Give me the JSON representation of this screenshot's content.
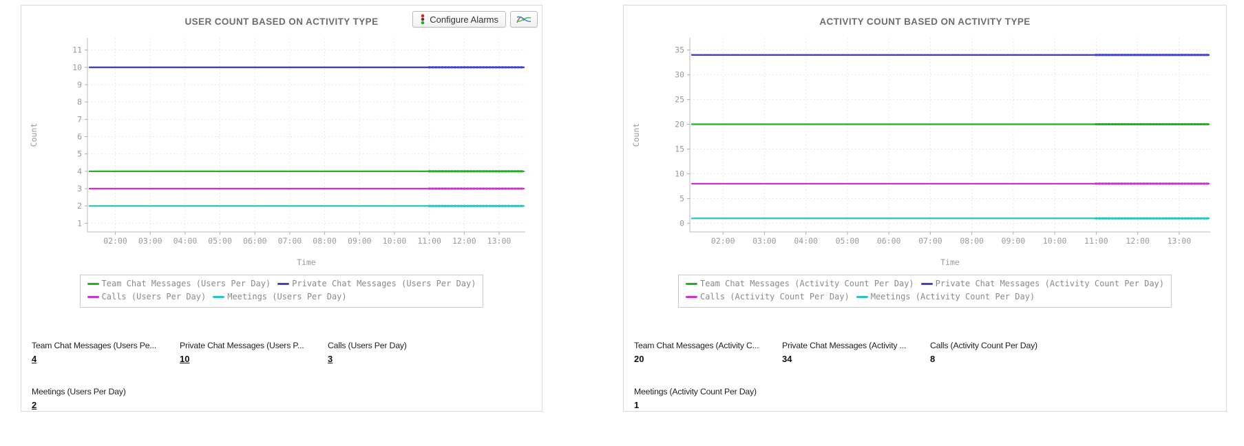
{
  "toolbar": {
    "configure_alarms_label": "Configure Alarms"
  },
  "chart_data": [
    {
      "type": "line",
      "title": "USER COUNT BASED ON ACTIVITY TYPE",
      "xlabel": "Time",
      "ylabel": "Count",
      "x_ticks": [
        "02:00",
        "03:00",
        "04:00",
        "05:00",
        "06:00",
        "07:00",
        "08:00",
        "09:00",
        "10:00",
        "11:00",
        "12:00",
        "13:00"
      ],
      "y_ticks": [
        1,
        2,
        3,
        4,
        5,
        6,
        7,
        8,
        9,
        10,
        11
      ],
      "ylim": [
        1,
        11
      ],
      "grid": true,
      "legend_position": "bottom",
      "series": [
        {
          "name": "Team Chat Messages (Users Per Day)",
          "color": "#1cb41c",
          "constant_value": 4
        },
        {
          "name": "Private Chat Messages (Users Per Day)",
          "color": "#4040cf",
          "constant_value": 10
        },
        {
          "name": "Calls (Users Per Day)",
          "color": "#cd32cd",
          "constant_value": 3
        },
        {
          "name": "Meetings (Users Per Day)",
          "color": "#2cc2c2",
          "constant_value": 2
        }
      ],
      "legend_rows": [
        [
          0,
          1
        ],
        [
          2,
          3
        ]
      ]
    },
    {
      "type": "line",
      "title": "ACTIVITY COUNT BASED ON ACTIVITY TYPE",
      "xlabel": "Time",
      "ylabel": "Count",
      "x_ticks": [
        "02:00",
        "03:00",
        "04:00",
        "05:00",
        "06:00",
        "07:00",
        "08:00",
        "09:00",
        "10:00",
        "11:00",
        "12:00",
        "13:00"
      ],
      "y_ticks": [
        0,
        5,
        10,
        15,
        20,
        25,
        30,
        35
      ],
      "ylim": [
        0,
        35
      ],
      "grid": true,
      "legend_position": "bottom",
      "series": [
        {
          "name": "Team Chat Messages (Activity Count Per Day)",
          "color": "#1cb41c",
          "constant_value": 20
        },
        {
          "name": "Private Chat Messages (Activity Count Per Day)",
          "color": "#4040cf",
          "constant_value": 34
        },
        {
          "name": "Calls (Activity Count Per Day)",
          "color": "#cd32cd",
          "constant_value": 8
        },
        {
          "name": "Meetings (Activity Count Per Day)",
          "color": "#2cc2c2",
          "constant_value": 1
        }
      ],
      "legend_rows": [
        [
          0,
          1
        ],
        [
          2,
          3
        ]
      ]
    }
  ],
  "panels": [
    {
      "values_underlined": true,
      "stats": [
        {
          "label": "Team Chat Messages (Users Pe...",
          "value": "4"
        },
        {
          "label": "Private Chat Messages (Users P...",
          "value": "10"
        },
        {
          "label": "Calls (Users Per Day)",
          "value": "3"
        },
        {
          "label": "Meetings (Users Per Day)",
          "value": "2"
        }
      ]
    },
    {
      "values_underlined": false,
      "stats": [
        {
          "label": "Team Chat Messages (Activity C...",
          "value": "20"
        },
        {
          "label": "Private Chat Messages (Activity ...",
          "value": "34"
        },
        {
          "label": "Calls (Activity Count Per Day)",
          "value": "8"
        },
        {
          "label": "Meetings (Activity Count Per Day)",
          "value": "1"
        }
      ]
    }
  ],
  "colors": {
    "title_text": "#6b6d70",
    "axis_text": "#999999",
    "legend_text": "#8a8a8a",
    "grid_line": "#e7e7e7",
    "panel_border": "#d9d9d9"
  }
}
